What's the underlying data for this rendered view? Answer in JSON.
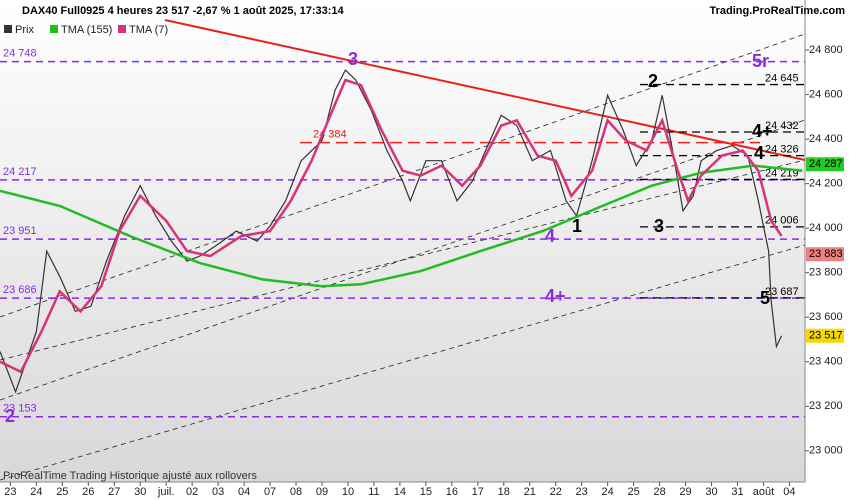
{
  "chart_data": {
    "type": "line",
    "title": "DAX40 Full0925 4 heures 23 517 -2,67 % 1 août 2025, 17:33:14",
    "brand": "Trading.ProRealTime.com",
    "footer": "ProRealTime Trading  Historique ajusté aux rollovers",
    "legend": [
      "Prix",
      "TMA (155)",
      "TMA (7)"
    ],
    "xlim": [
      -0.4,
      30.6
    ],
    "ylim": [
      22860,
      24935
    ],
    "xticks": [
      {
        "value": 0,
        "label": "23"
      },
      {
        "value": 1,
        "label": "24"
      },
      {
        "value": 2,
        "label": "25"
      },
      {
        "value": 3,
        "label": "26"
      },
      {
        "value": 4,
        "label": "27"
      },
      {
        "value": 5,
        "label": "30"
      },
      {
        "value": 6,
        "label": "juil."
      },
      {
        "value": 7,
        "label": "02"
      },
      {
        "value": 8,
        "label": "03"
      },
      {
        "value": 9,
        "label": "04"
      },
      {
        "value": 10,
        "label": "07"
      },
      {
        "value": 11,
        "label": "08"
      },
      {
        "value": 12,
        "label": "09"
      },
      {
        "value": 13,
        "label": "10"
      },
      {
        "value": 14,
        "label": "11"
      },
      {
        "value": 15,
        "label": "14"
      },
      {
        "value": 16,
        "label": "15"
      },
      {
        "value": 17,
        "label": "16"
      },
      {
        "value": 18,
        "label": "17"
      },
      {
        "value": 19,
        "label": "18"
      },
      {
        "value": 20,
        "label": "21"
      },
      {
        "value": 21,
        "label": "22"
      },
      {
        "value": 22,
        "label": "23"
      },
      {
        "value": 23,
        "label": "24"
      },
      {
        "value": 24,
        "label": "25"
      },
      {
        "value": 25,
        "label": "28"
      },
      {
        "value": 26,
        "label": "29"
      },
      {
        "value": 27,
        "label": "30"
      },
      {
        "value": 28,
        "label": "31"
      },
      {
        "value": 29,
        "label": "août"
      },
      {
        "value": 30,
        "label": "04"
      }
    ],
    "yticks": [
      {
        "value": 23000,
        "label": "23 000"
      },
      {
        "value": 23200,
        "label": "23 200"
      },
      {
        "value": 23400,
        "label": "23 400"
      },
      {
        "value": 23600,
        "label": "23 600"
      },
      {
        "value": 23800,
        "label": "23 800"
      },
      {
        "value": 24000,
        "label": "24 000"
      },
      {
        "value": 24200,
        "label": "24 200"
      },
      {
        "value": 24400,
        "label": "24 400"
      },
      {
        "value": 24600,
        "label": "24 600"
      },
      {
        "value": 24800,
        "label": "24 800"
      }
    ],
    "series": [
      {
        "name": "Prix",
        "color": "#333333",
        "x": [
          -0.4,
          0.2,
          1.0,
          1.4,
          1.9,
          2.5,
          3.1,
          3.7,
          4.4,
          5.0,
          5.6,
          6.2,
          6.8,
          7.3,
          7.9,
          8.7,
          9.5,
          10.0,
          10.6,
          11.2,
          12.0,
          12.5,
          12.9,
          13.3,
          13.9,
          14.5,
          15.1,
          15.4,
          16.0,
          16.6,
          17.2,
          17.8,
          18.3,
          18.9,
          19.5,
          20.1,
          20.8,
          21.4,
          21.8,
          22.4,
          23.0,
          23.6,
          24.1,
          24.7,
          25.1,
          25.5,
          25.9,
          26.3,
          26.6,
          27.2,
          27.8,
          28.4,
          28.8,
          29.2,
          29.3,
          29.5,
          29.7
        ],
        "values": [
          23446,
          23265,
          23536,
          23897,
          23784,
          23626,
          23649,
          23852,
          24055,
          24191,
          24055,
          23942,
          23852,
          23875,
          23920,
          23987,
          23942,
          24010,
          24123,
          24303,
          24394,
          24619,
          24710,
          24665,
          24529,
          24349,
          24213,
          24123,
          24303,
          24303,
          24123,
          24213,
          24349,
          24507,
          24461,
          24303,
          24349,
          24123,
          24055,
          24303,
          24597,
          24439,
          24281,
          24394,
          24597,
          24349,
          24078,
          24145,
          24303,
          24349,
          24371,
          24326,
          24123,
          23897,
          23671,
          23468,
          23517
        ]
      },
      {
        "name": "TMA (155)",
        "color": "#22bb22",
        "x": [
          -0.4,
          1.9,
          4.6,
          7.3,
          9.7,
          12.0,
          13.5,
          15.8,
          18.1,
          20.5,
          22.8,
          24.7,
          26.6,
          28.6,
          30.5
        ],
        "values": [
          24168,
          24100,
          23965,
          23843,
          23770,
          23739,
          23748,
          23807,
          23897,
          23987,
          24100,
          24191,
          24249,
          24281,
          24258
        ]
      },
      {
        "name": "TMA (7)",
        "color": "#d6337a",
        "x": [
          -0.4,
          0.4,
          1.2,
          1.9,
          2.7,
          3.5,
          4.2,
          5.0,
          6.0,
          6.8,
          7.7,
          8.9,
          10.0,
          10.8,
          11.6,
          12.4,
          12.9,
          13.5,
          14.3,
          15.1,
          15.8,
          16.6,
          17.4,
          18.1,
          18.9,
          19.5,
          20.3,
          21.0,
          21.6,
          22.4,
          23.0,
          23.7,
          24.5,
          25.1,
          25.7,
          26.1,
          26.6,
          27.4,
          28.2,
          28.8,
          29.3,
          29.7
        ],
        "values": [
          23400,
          23355,
          23536,
          23716,
          23626,
          23739,
          23987,
          24145,
          24033,
          23897,
          23875,
          23965,
          23987,
          24123,
          24303,
          24529,
          24665,
          24642,
          24439,
          24258,
          24236,
          24281,
          24191,
          24281,
          24461,
          24484,
          24326,
          24303,
          24145,
          24258,
          24484,
          24394,
          24349,
          24484,
          24258,
          24123,
          24236,
          24326,
          24349,
          24258,
          24033,
          23965
        ]
      }
    ],
    "purple_levels": [
      {
        "value": 24748,
        "label": "24 748"
      },
      {
        "value": 24217,
        "label": "24 217"
      },
      {
        "value": 23951,
        "label": "23 951"
      },
      {
        "value": 23686,
        "label": "23 686"
      },
      {
        "value": 23153,
        "label": "23 153"
      }
    ],
    "black_levels": [
      {
        "value": 24645,
        "label": "24 645"
      },
      {
        "value": 24432,
        "label": "24 432"
      },
      {
        "value": 24326,
        "label": "24 326"
      },
      {
        "value": 24219,
        "label": "24 219"
      },
      {
        "value": 24006,
        "label": "24 006"
      },
      {
        "value": 23687,
        "label": "23 687"
      }
    ],
    "red_level": {
      "value": 24384,
      "label": "24 384"
    },
    "price_tags": [
      {
        "value": 24287,
        "label": "24 287",
        "color": "#22cc22"
      },
      {
        "value": 23883,
        "label": "23 883",
        "color": "#f08080"
      },
      {
        "value": 23517,
        "label": "23 517",
        "color": "#f5d800"
      }
    ],
    "annotations": [
      "3",
      "2",
      "5r",
      "4+",
      "4",
      "1",
      "4",
      "3",
      "4+",
      "5",
      "2"
    ]
  }
}
